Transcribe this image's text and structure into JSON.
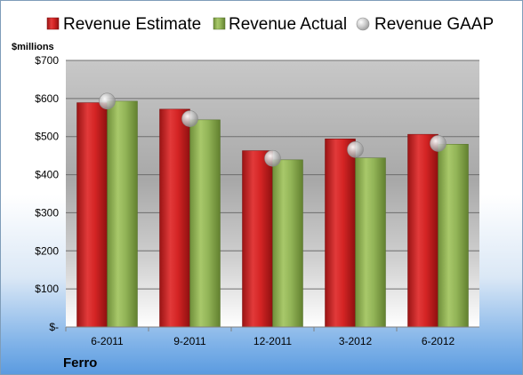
{
  "chart_data": {
    "type": "bar",
    "categories": [
      "6-2011",
      "9-2011",
      "12-2011",
      "3-2012",
      "6-2012"
    ],
    "series": [
      {
        "name": "Revenue Estimate",
        "kind": "bar",
        "color": "#cc1f1f",
        "values": [
          589,
          572,
          463,
          494,
          506
        ]
      },
      {
        "name": "Revenue Actual",
        "kind": "bar",
        "color": "#8cb050",
        "values": [
          593,
          544,
          439,
          444,
          480
        ]
      },
      {
        "name": "Revenue GAAP",
        "kind": "marker",
        "color": "#b8b8b8",
        "values": [
          593,
          547,
          443,
          466,
          482
        ]
      }
    ],
    "ylabel": "$millions",
    "ylim": [
      0,
      700
    ],
    "yticks": [
      {
        "value": 0,
        "label": "$-"
      },
      {
        "value": 100,
        "label": "$100"
      },
      {
        "value": 200,
        "label": "$200"
      },
      {
        "value": 300,
        "label": "$300"
      },
      {
        "value": 400,
        "label": "$400"
      },
      {
        "value": 500,
        "label": "$500"
      },
      {
        "value": 600,
        "label": "$600"
      },
      {
        "value": 700,
        "label": "$700"
      }
    ],
    "grid": true,
    "legend_position": "top",
    "company": "Ferro"
  }
}
